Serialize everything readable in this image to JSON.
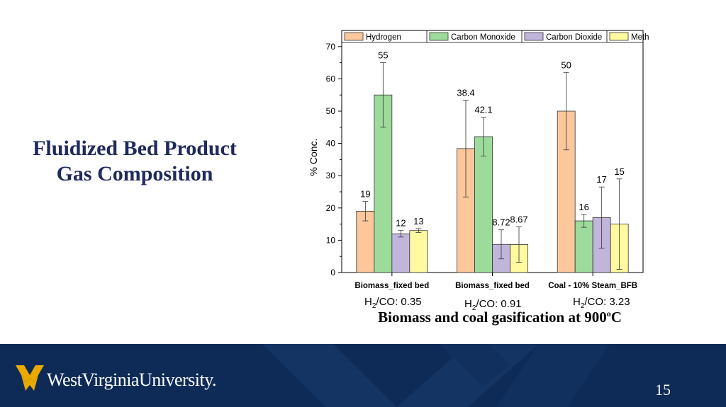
{
  "slide": {
    "title_line1": "Fluidized Bed Product",
    "title_line2": "Gas Composition",
    "caption_main": "Biomass and coal gasification at 900",
    "caption_sup": "o",
    "caption_end": "C",
    "ratios": [
      {
        "prefix": "H",
        "sub": "2",
        "suffix": "/CO: 0.35"
      },
      {
        "prefix": "H",
        "sub": "2",
        "suffix": "/CO: 0.91"
      },
      {
        "prefix": "H",
        "sub": "2",
        "suffix": "/CO: 3.23"
      }
    ],
    "brand": "WestVirginiaUniversity.",
    "page_number": "15",
    "colors": {
      "title": "#1f2a5c",
      "footer": "#0e2b57",
      "logo": "#eaaa00"
    }
  },
  "chart_data": {
    "type": "bar",
    "title": "",
    "xlabel": "",
    "ylabel": "% Conc.",
    "ylim": [
      0,
      75
    ],
    "yticks": [
      0,
      10,
      20,
      30,
      40,
      50,
      60,
      70
    ],
    "categories": [
      "Biomass_fixed bed",
      "Biomass_fixed bed",
      "Coal - 10% Steam_BFB"
    ],
    "series": [
      {
        "name": "Hydrogen",
        "color": "#fcc79a",
        "values": [
          19,
          38.4,
          50
        ],
        "errors": [
          3,
          15,
          12
        ],
        "labels": [
          "19",
          "38.4",
          "50"
        ]
      },
      {
        "name": "Carbon Monoxide",
        "color": "#9ddb9b",
        "values": [
          55,
          42.1,
          16
        ],
        "errors": [
          10,
          6,
          2
        ],
        "labels": [
          "55",
          "42.1",
          "16"
        ]
      },
      {
        "name": "Carbon Dioxide",
        "color": "#c1b5dc",
        "values": [
          12,
          8.72,
          17
        ],
        "errors": [
          1,
          4.5,
          9.5
        ],
        "labels": [
          "12",
          "8.72",
          "17"
        ]
      },
      {
        "name": "Methane",
        "color": "#fffa9f",
        "values": [
          13,
          8.67,
          15
        ],
        "errors": [
          0.6,
          5.5,
          14
        ],
        "labels": [
          "13",
          "8.67",
          "15"
        ]
      }
    ],
    "legend_position": "top",
    "grid": false
  }
}
